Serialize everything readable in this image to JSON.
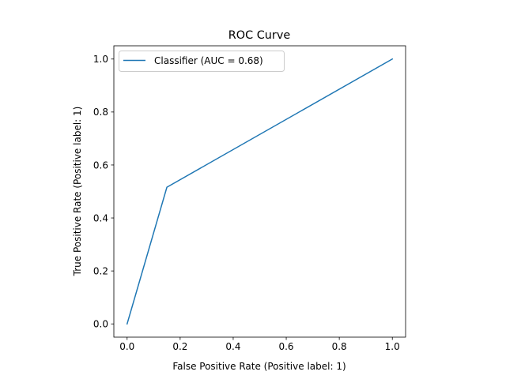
{
  "chart_data": {
    "type": "line",
    "title": "ROC Curve",
    "xlabel": "False Positive Rate (Positive label: 1)",
    "ylabel": "True Positive Rate (Positive label: 1)",
    "xlim": [
      0.0,
      1.0
    ],
    "ylim": [
      0.0,
      1.0
    ],
    "xticks": [
      0.0,
      0.2,
      0.4,
      0.6,
      0.8,
      1.0
    ],
    "yticks": [
      0.0,
      0.2,
      0.4,
      0.6,
      0.8,
      1.0
    ],
    "xtick_labels": [
      "0.0",
      "0.2",
      "0.4",
      "0.6",
      "0.8",
      "1.0"
    ],
    "ytick_labels": [
      "0.0",
      "0.2",
      "0.4",
      "0.6",
      "0.8",
      "1.0"
    ],
    "grid": false,
    "legend": "top-left",
    "series": [
      {
        "name": "Classifier (AUC = 0.68)",
        "color": "#1f77b4",
        "x": [
          0.0,
          0.15,
          1.0
        ],
        "y": [
          0.0,
          0.516,
          1.0
        ]
      }
    ]
  }
}
